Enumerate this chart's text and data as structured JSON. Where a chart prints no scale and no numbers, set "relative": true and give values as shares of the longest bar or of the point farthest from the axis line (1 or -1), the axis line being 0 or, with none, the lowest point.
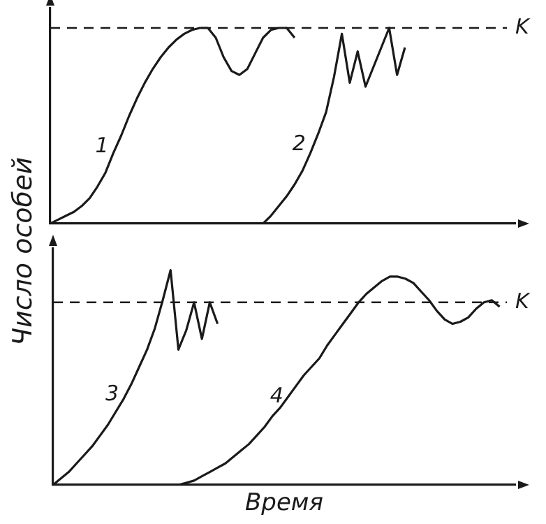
{
  "chart_data": [
    {
      "type": "line",
      "relative": true,
      "ylabel": "Число особей",
      "tick_labels": false,
      "grid": false,
      "legend": false,
      "categories": [
        null,
        null,
        null,
        null,
        null,
        null,
        null,
        null,
        null,
        null,
        null,
        null,
        null,
        null,
        null,
        null,
        null,
        null,
        null,
        null,
        null,
        null,
        null,
        null,
        null,
        null,
        null,
        null,
        null,
        null,
        null,
        null,
        null,
        null,
        null,
        null,
        null,
        null,
        null,
        null,
        null,
        null,
        null,
        null,
        null,
        null,
        null,
        null,
        null,
        null,
        null,
        null,
        null,
        null,
        null,
        null,
        null,
        null,
        null,
        null
      ],
      "series": [
        {
          "name": "1",
          "color": "#1a1a1a",
          "values": [
            0,
            0.02,
            0.04,
            0.06,
            0.09,
            0.13,
            0.19,
            0.26,
            0.36,
            0.45,
            0.55,
            0.64,
            0.72,
            0.79,
            0.85,
            0.9,
            0.94,
            0.97,
            0.99,
            1,
            1,
            0.95,
            0.85,
            0.78,
            0.76,
            0.79,
            0.87,
            0.95,
            0.99,
            1,
            1,
            0.95,
            null,
            null,
            null,
            null,
            null,
            null,
            null,
            null,
            null,
            null,
            null,
            null,
            null,
            null,
            null,
            null,
            null,
            null,
            null,
            null,
            null,
            null,
            null,
            null,
            null,
            null,
            null,
            null
          ]
        },
        {
          "name": "2",
          "color": "#1a1a1a",
          "values": [
            null,
            null,
            null,
            null,
            null,
            null,
            null,
            null,
            null,
            null,
            null,
            null,
            null,
            null,
            null,
            null,
            null,
            null,
            null,
            null,
            null,
            null,
            null,
            null,
            null,
            null,
            null,
            0,
            0.04,
            0.09,
            0.14,
            0.2,
            0.27,
            0.36,
            0.46,
            0.57,
            0.75,
            0.97,
            0.72,
            0.88,
            0.7,
            0.8,
            0.9,
            1,
            0.76,
            0.9,
            null,
            null,
            null,
            null,
            null,
            null,
            null,
            null,
            null,
            null,
            null,
            null,
            null,
            null
          ]
        }
      ],
      "ref_lines": [
        {
          "axis": "y",
          "value": 1,
          "label": "K",
          "line_style": "dashed",
          "color": "#1a1a1a"
        }
      ]
    },
    {
      "type": "line",
      "relative": true,
      "xlabel": "Время",
      "tick_labels": false,
      "grid": false,
      "legend": false,
      "categories": [
        null,
        null,
        null,
        null,
        null,
        null,
        null,
        null,
        null,
        null,
        null,
        null,
        null,
        null,
        null,
        null,
        null,
        null,
        null,
        null,
        null,
        null,
        null,
        null,
        null,
        null,
        null,
        null,
        null,
        null,
        null,
        null,
        null,
        null,
        null,
        null,
        null,
        null,
        null,
        null,
        null,
        null,
        null,
        null,
        null,
        null,
        null,
        null,
        null,
        null,
        null,
        null,
        null,
        null,
        null,
        null,
        null,
        null,
        null,
        null
      ],
      "series": [
        {
          "name": "3",
          "color": "#1a1a1a",
          "values": [
            0,
            0.03,
            0.06,
            0.1,
            0.14,
            0.18,
            0.23,
            0.28,
            0.34,
            0.4,
            0.47,
            0.55,
            0.63,
            0.73,
            0.86,
            1,
            0.63,
            0.72,
            0.85,
            0.68,
            0.85,
            0.75,
            null,
            null,
            null,
            null,
            null,
            null,
            null,
            null,
            null,
            null,
            null,
            null,
            null,
            null,
            null,
            null,
            null,
            null,
            null,
            null,
            null,
            null,
            null,
            null,
            null,
            null,
            null,
            null,
            null,
            null,
            null,
            null,
            null,
            null,
            null,
            null,
            null,
            null
          ]
        },
        {
          "name": "4",
          "color": "#1a1a1a",
          "values": [
            null,
            null,
            null,
            null,
            null,
            null,
            null,
            null,
            null,
            null,
            null,
            null,
            null,
            null,
            null,
            null,
            0,
            0.01,
            0.02,
            0.04,
            0.06,
            0.08,
            0.1,
            0.13,
            0.16,
            0.19,
            0.23,
            0.27,
            0.32,
            0.36,
            0.41,
            0.46,
            0.51,
            0.55,
            0.59,
            0.65,
            0.7,
            0.75,
            0.8,
            0.85,
            0.89,
            0.92,
            0.95,
            0.97,
            0.97,
            0.96,
            0.94,
            0.9,
            0.86,
            0.81,
            0.77,
            0.75,
            0.76,
            0.78,
            0.82,
            0.85,
            0.86,
            0.83,
            null,
            null
          ]
        }
      ],
      "ref_lines": [
        {
          "axis": "y",
          "value": 0.85,
          "label": "K",
          "line_style": "dashed",
          "color": "#1a1a1a"
        }
      ]
    }
  ]
}
